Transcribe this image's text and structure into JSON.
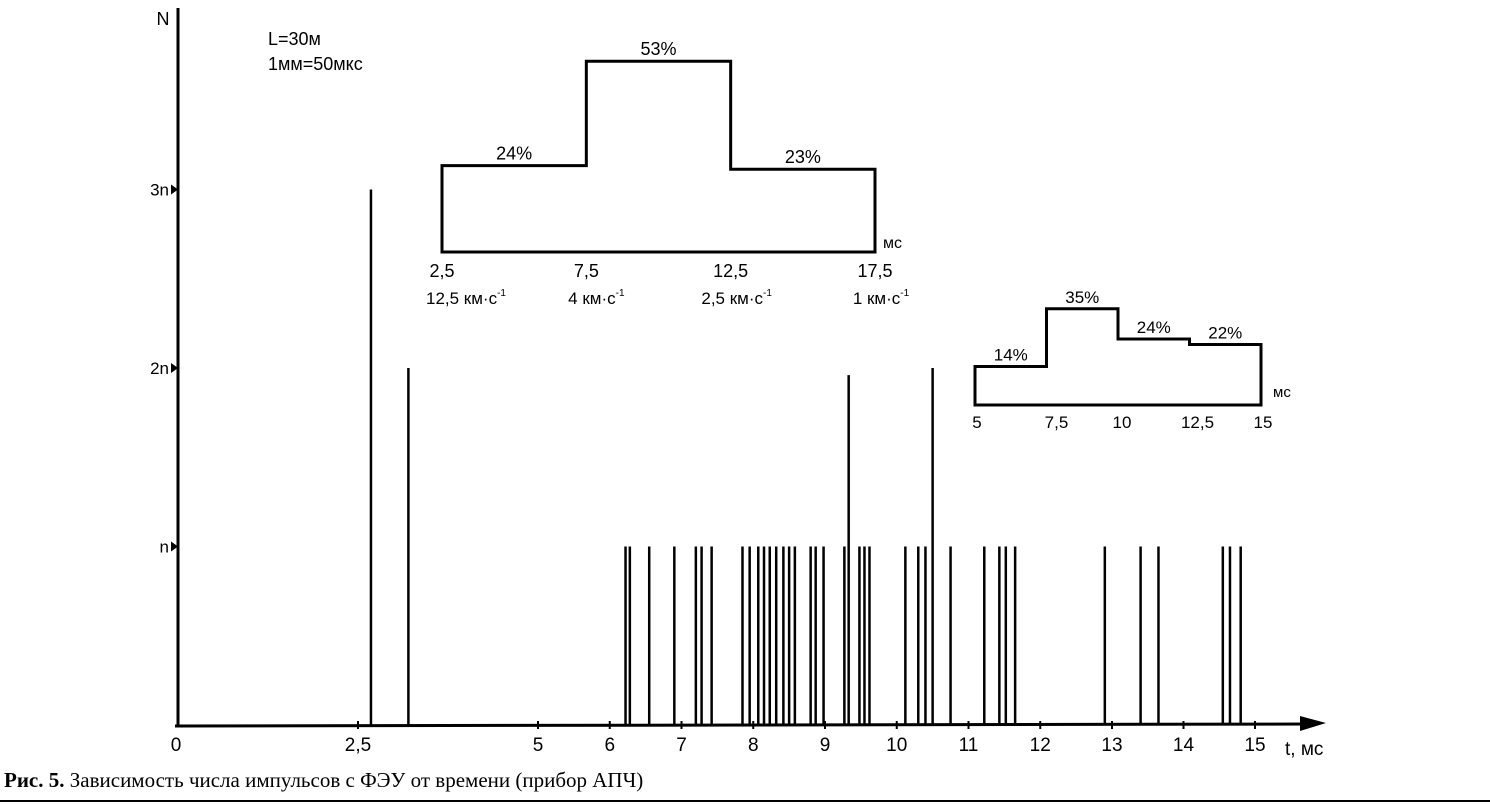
{
  "chart_data": [
    {
      "type": "bar",
      "ylabel": "N",
      "xlabel": "t, мс",
      "annotation_lines": [
        "L=30м",
        "1мм=50мкс"
      ],
      "x_ticks": [
        {
          "value": 0,
          "label": "0"
        },
        {
          "value": 2.5,
          "label": "2,5"
        },
        {
          "value": 5,
          "label": "5"
        },
        {
          "value": 6,
          "label": "6"
        },
        {
          "value": 7,
          "label": "7"
        },
        {
          "value": 8,
          "label": "8"
        },
        {
          "value": 9,
          "label": "9"
        },
        {
          "value": 10,
          "label": "10"
        },
        {
          "value": 11,
          "label": "11"
        },
        {
          "value": 12,
          "label": "12"
        },
        {
          "value": 13,
          "label": "13"
        },
        {
          "value": 14,
          "label": "14"
        },
        {
          "value": 15,
          "label": "15"
        }
      ],
      "y_ticks": [
        {
          "value": 1,
          "label": "n"
        },
        {
          "value": 2,
          "label": "2n"
        },
        {
          "value": 3,
          "label": "3n"
        }
      ],
      "xlim": [
        0,
        15.9
      ],
      "ylim": [
        0,
        3.95
      ],
      "y_unit": "n",
      "pulses": [
        {
          "t": 2.68,
          "n": 3
        },
        {
          "t": 3.2,
          "n": 2
        },
        {
          "t": 6.22,
          "n": 1
        },
        {
          "t": 6.28,
          "n": 1
        },
        {
          "t": 6.55,
          "n": 1
        },
        {
          "t": 6.9,
          "n": 1
        },
        {
          "t": 7.2,
          "n": 1
        },
        {
          "t": 7.28,
          "n": 1
        },
        {
          "t": 7.42,
          "n": 1
        },
        {
          "t": 7.85,
          "n": 1
        },
        {
          "t": 7.95,
          "n": 1
        },
        {
          "t": 8.07,
          "n": 1
        },
        {
          "t": 8.15,
          "n": 1
        },
        {
          "t": 8.23,
          "n": 1
        },
        {
          "t": 8.32,
          "n": 1
        },
        {
          "t": 8.42,
          "n": 1
        },
        {
          "t": 8.5,
          "n": 1
        },
        {
          "t": 8.58,
          "n": 1
        },
        {
          "t": 8.8,
          "n": 1
        },
        {
          "t": 8.87,
          "n": 1
        },
        {
          "t": 8.98,
          "n": 1
        },
        {
          "t": 9.27,
          "n": 1
        },
        {
          "t": 9.33,
          "n": 1.96
        },
        {
          "t": 9.48,
          "n": 1
        },
        {
          "t": 9.55,
          "n": 1
        },
        {
          "t": 9.62,
          "n": 1
        },
        {
          "t": 10.12,
          "n": 1
        },
        {
          "t": 10.3,
          "n": 1
        },
        {
          "t": 10.4,
          "n": 1
        },
        {
          "t": 10.5,
          "n": 2
        },
        {
          "t": 10.75,
          "n": 1
        },
        {
          "t": 11.22,
          "n": 1
        },
        {
          "t": 11.43,
          "n": 1
        },
        {
          "t": 11.52,
          "n": 1
        },
        {
          "t": 11.65,
          "n": 1
        },
        {
          "t": 12.9,
          "n": 1
        },
        {
          "t": 13.4,
          "n": 1
        },
        {
          "t": 13.65,
          "n": 1
        },
        {
          "t": 14.55,
          "n": 1
        },
        {
          "t": 14.65,
          "n": 1
        },
        {
          "t": 14.8,
          "n": 1
        }
      ]
    },
    {
      "type": "area",
      "unit": "мс",
      "steps": [
        {
          "from": 2.5,
          "to": 7.5,
          "percent": 24,
          "label": "24%"
        },
        {
          "from": 7.5,
          "to": 12.5,
          "percent": 53,
          "label": "53%"
        },
        {
          "from": 12.5,
          "to": 17.5,
          "percent": 23,
          "label": "23%"
        }
      ],
      "x_labels": [
        "2,5",
        "7,5",
        "12,5",
        "17,5"
      ],
      "speed_labels": [
        "12,5 км·с",
        "4 км·с",
        "2,5 км·с",
        "1 км·с"
      ],
      "speed_exponent": "-1"
    },
    {
      "type": "area",
      "unit": "мс",
      "steps": [
        {
          "from": 5,
          "to": 7.5,
          "percent": 14,
          "label": "14%"
        },
        {
          "from": 7.5,
          "to": 10,
          "percent": 35,
          "label": "35%"
        },
        {
          "from": 10,
          "to": 12.5,
          "percent": 24,
          "label": "24%"
        },
        {
          "from": 12.5,
          "to": 15,
          "percent": 22,
          "label": "22%"
        }
      ],
      "x_labels": [
        "5",
        "7,5",
        "10",
        "12,5",
        "15"
      ]
    }
  ],
  "caption": {
    "label": "Рис. 5.",
    "text": " Зависимость числа импульсов с ФЭУ от времени (прибор  АПЧ)"
  }
}
